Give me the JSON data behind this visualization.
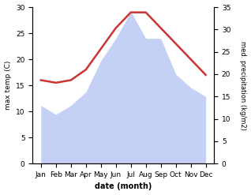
{
  "months": [
    "Jan",
    "Feb",
    "Mar",
    "Apr",
    "May",
    "Jun",
    "Jul",
    "Aug",
    "Sep",
    "Oct",
    "Nov",
    "Dec"
  ],
  "temp": [
    16,
    15.5,
    16,
    18,
    22,
    26,
    29,
    29,
    26,
    23,
    20,
    17
  ],
  "precip": [
    13,
    11,
    13,
    16,
    23,
    28,
    34,
    28,
    28,
    20,
    17,
    15
  ],
  "temp_color": "#cc3333",
  "precip_fill_color": "#c5d0f5",
  "temp_ylim": [
    0,
    30
  ],
  "temp_yticks": [
    0,
    5,
    10,
    15,
    20,
    25,
    30
  ],
  "precip_ylim": [
    0,
    35
  ],
  "precip_yticks": [
    0,
    5,
    10,
    15,
    20,
    25,
    30,
    35
  ],
  "xlabel": "date (month)",
  "ylabel_left": "max temp (C)",
  "ylabel_right": "med. precipitation (kg/m2)"
}
